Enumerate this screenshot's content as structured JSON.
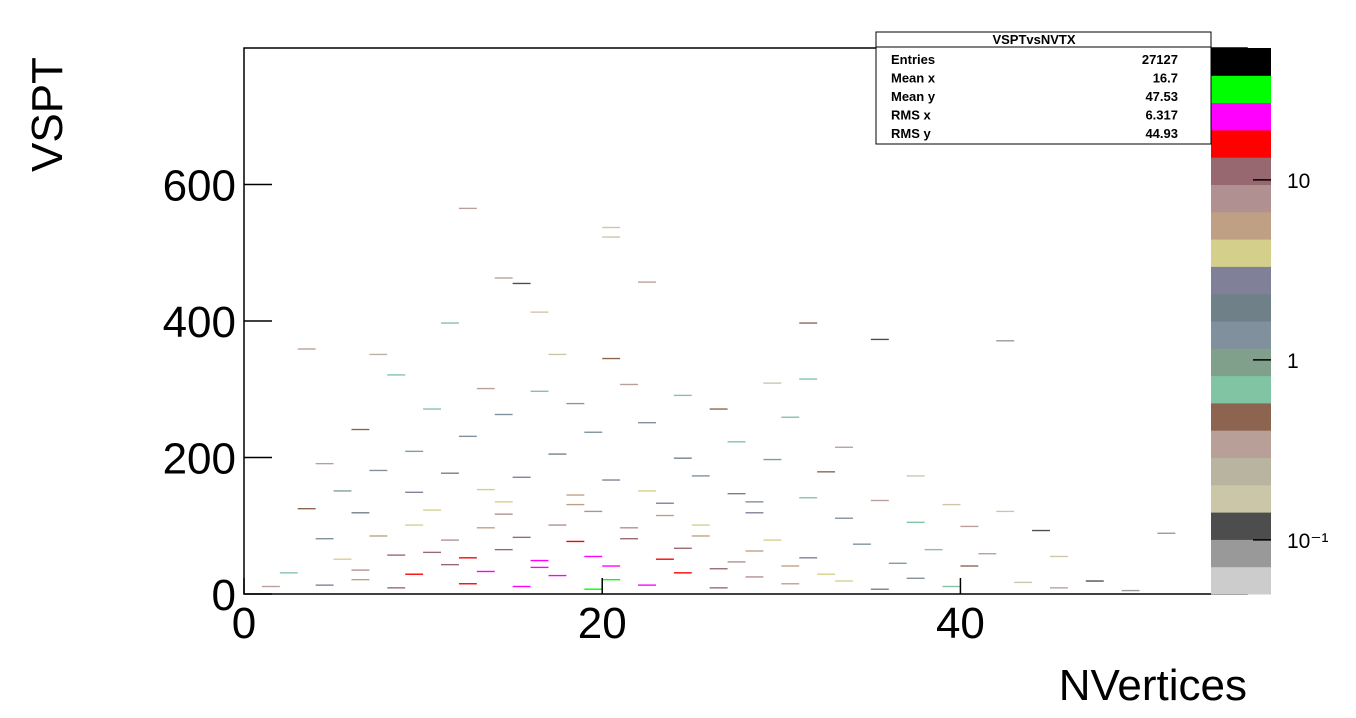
{
  "chart_data": {
    "type": "hist2d",
    "x_label": "NVertices",
    "y_label": "VSPT",
    "xlim": [
      0,
      56
    ],
    "ylim": [
      0,
      800
    ],
    "xticks": [
      0,
      20,
      40
    ],
    "yticks": [
      0,
      200,
      400,
      600
    ],
    "zlim": [
      0.05,
      54
    ],
    "zscale": "log",
    "zticks": [
      {
        "value": 0.1,
        "label": "10⁻¹"
      },
      1,
      10
    ],
    "palette": [
      "#cccccc",
      "#999999",
      "#4d4d4d",
      "#ccc6a8",
      "#b8b4a0",
      "#b8a098",
      "#8c6450",
      "#80c4a4",
      "#80a08c",
      "#80909c",
      "#708088",
      "#808098",
      "#d4d08c",
      "#c0a084",
      "#b09090",
      "#986870",
      "#ff0000",
      "#ff00ff",
      "#00ff00",
      "#000000"
    ],
    "stats": {
      "title": "VSPTvsNVTX",
      "rows": [
        {
          "label": "Entries",
          "value": 27127
        },
        {
          "label": "Mean x",
          "value": 16.7
        },
        {
          "label": "Mean y",
          "value": 47.53
        },
        {
          "label": "RMS x",
          "value": 6.317
        },
        {
          "label": "RMS y",
          "value": 44.93
        }
      ]
    },
    "x": [
      12,
      20,
      20,
      14,
      15,
      22,
      16,
      11,
      31,
      3,
      7,
      17,
      20,
      35,
      42,
      31,
      8,
      21,
      29,
      13,
      16,
      24,
      18,
      26,
      10,
      14,
      30,
      22,
      6,
      19,
      12,
      27,
      33,
      9,
      17,
      24,
      4,
      29,
      7,
      11,
      15,
      20,
      25,
      32,
      37,
      5,
      9,
      13,
      18,
      22,
      27,
      31,
      35,
      39,
      42,
      3,
      6,
      10,
      14,
      19,
      23,
      28,
      33,
      37,
      40,
      44,
      51,
      4,
      7,
      11,
      15,
      18,
      21,
      25,
      29,
      34,
      38,
      41,
      45,
      5,
      8,
      12,
      16,
      19,
      23,
      27,
      31,
      36,
      40,
      2,
      6,
      9,
      13,
      17,
      20,
      24,
      28,
      32,
      37,
      43,
      47,
      1,
      4,
      8,
      12,
      15,
      19,
      22,
      26,
      30,
      35,
      39,
      45,
      49,
      10,
      14,
      17,
      21,
      25,
      13,
      9,
      24,
      28,
      20,
      16,
      11,
      26,
      30,
      33,
      6,
      18,
      14,
      23,
      28
    ],
    "y": [
      564,
      536,
      522,
      462,
      454,
      456,
      412,
      396,
      396,
      358,
      350,
      350,
      344,
      372,
      370,
      314,
      320,
      306,
      308,
      300,
      296,
      290,
      278,
      270,
      270,
      262,
      258,
      250,
      240,
      236,
      230,
      222,
      214,
      208,
      204,
      198,
      190,
      196,
      180,
      176,
      170,
      166,
      172,
      178,
      172,
      150,
      148,
      152,
      144,
      150,
      146,
      140,
      136,
      130,
      120,
      124,
      118,
      122,
      116,
      120,
      114,
      118,
      110,
      104,
      98,
      92,
      88,
      80,
      84,
      78,
      82,
      76,
      80,
      84,
      78,
      72,
      64,
      58,
      54,
      50,
      56,
      52,
      48,
      54,
      50,
      46,
      52,
      44,
      40,
      30,
      34,
      28,
      32,
      26,
      20,
      30,
      24,
      28,
      22,
      16,
      18,
      10,
      12,
      8,
      14,
      10,
      6,
      12,
      8,
      14,
      6,
      10,
      8,
      4,
      60,
      64,
      100,
      96,
      100,
      96,
      100,
      66,
      62,
      40,
      38,
      42,
      36,
      40,
      18,
      20,
      130,
      134,
      132,
      134
    ],
    "values": [
      0.3,
      0.15,
      0.2,
      0.4,
      0.12,
      0.3,
      0.2,
      0.6,
      0.5,
      0.4,
      0.25,
      0.2,
      0.5,
      0.12,
      0.1,
      0.6,
      0.7,
      0.4,
      0.15,
      0.3,
      0.6,
      0.8,
      0.9,
      0.5,
      0.8,
      1.2,
      0.6,
      1.5,
      0.5,
      1.4,
      1.6,
      0.7,
      0.3,
      1.1,
      2.2,
      1.8,
      0.3,
      0.9,
      1.2,
      2,
      3,
      2.5,
      1.4,
      0.5,
      0.2,
      0.9,
      2.4,
      4,
      5,
      3.5,
      2,
      0.8,
      0.4,
      0.2,
      0.15,
      0.5,
      2,
      4.5,
      7,
      8,
      5.5,
      3,
      1.2,
      0.6,
      0.3,
      0.12,
      0.1,
      1.5,
      5,
      9,
      12,
      14,
      11,
      6,
      3.5,
      1.5,
      0.6,
      0.3,
      0.15,
      3.5,
      10,
      15,
      22,
      20,
      14,
      7,
      3,
      1,
      0.5,
      0.8,
      7,
      14,
      20,
      26,
      35,
      18,
      9,
      4,
      1.2,
      0.2,
      0.12,
      0.4,
      3,
      12,
      18,
      25,
      30,
      24,
      12,
      6,
      2,
      0.8,
      0.3,
      0.1,
      11,
      13,
      9,
      8,
      4,
      6,
      4,
      10,
      5,
      26,
      24,
      13,
      11,
      5,
      4,
      5,
      5,
      4,
      3,
      1.5
    ]
  }
}
